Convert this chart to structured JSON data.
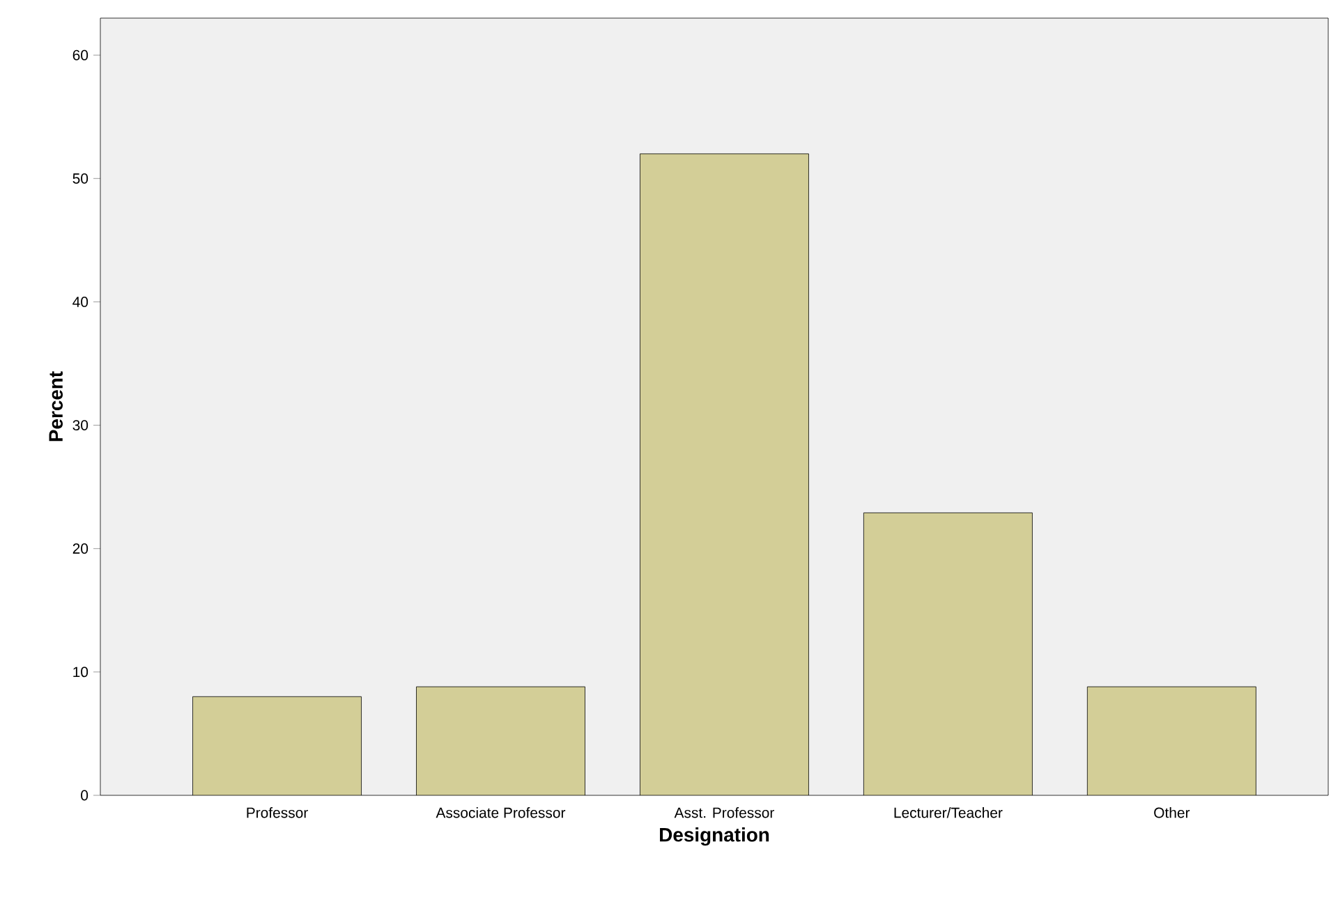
{
  "chart_data": {
    "type": "bar",
    "xlabel": "Designation",
    "ylabel": "Percent",
    "categories": [
      "Professor",
      "Associate Professor",
      "Asst. Professor",
      "Lecturer/Teacher",
      "Other"
    ],
    "values": [
      8.0,
      8.8,
      52.0,
      22.9,
      8.8
    ],
    "color": "#d3ce97",
    "ylim": [
      0,
      63
    ],
    "yticks": [
      0,
      10,
      20,
      30,
      40,
      50,
      60
    ]
  }
}
